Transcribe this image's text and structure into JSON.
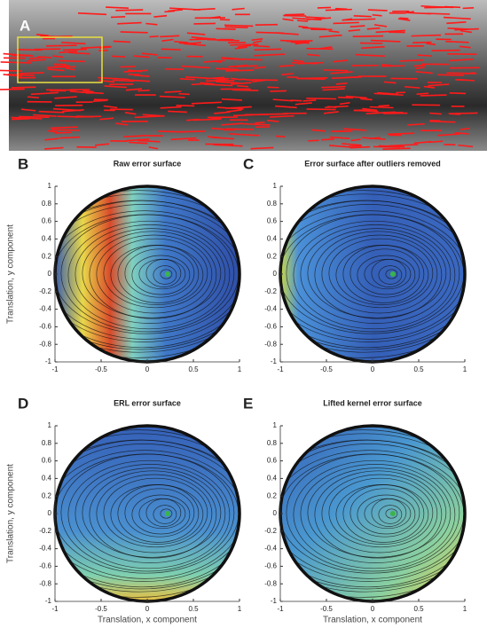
{
  "figure": {
    "photo_label": "A",
    "panels": [
      {
        "letter": "B",
        "title": "Raw error surface",
        "ylabel": "Translation, y component",
        "xlim": [
          -1,
          1
        ],
        "ylim": [
          -1,
          1
        ],
        "xticks": [
          -1,
          -0.5,
          0,
          0.5,
          1
        ],
        "yticks": [
          1,
          0.8,
          0.6,
          0.4,
          0.2,
          0,
          -0.2,
          -0.4,
          -0.6,
          -0.8,
          -1
        ]
      },
      {
        "letter": "C",
        "title": "Error surface after outliers removed",
        "xlim": [
          -1,
          1
        ],
        "ylim": [
          -1,
          1
        ],
        "xticks": [
          -1,
          -0.5,
          0,
          0.5,
          1
        ],
        "yticks": [
          1,
          0.8,
          0.6,
          0.4,
          0.2,
          0,
          -0.2,
          -0.4,
          -0.6,
          -0.8,
          -1
        ]
      },
      {
        "letter": "D",
        "title": "ERL error surface",
        "ylabel": "Translation, y component",
        "xlabel": "Translation, x component",
        "xlim": [
          -1,
          1
        ],
        "ylim": [
          -1,
          1
        ],
        "xticks": [
          -1,
          -0.5,
          0,
          0.5,
          1
        ],
        "yticks": [
          1,
          0.8,
          0.6,
          0.4,
          0.2,
          0,
          -0.2,
          -0.4,
          -0.6,
          -0.8,
          -1
        ]
      },
      {
        "letter": "E",
        "title": "Lifted kernel error surface",
        "xlabel": "Translation, x component",
        "xlim": [
          -1,
          1
        ],
        "ylim": [
          -1,
          1
        ],
        "xticks": [
          -1,
          -0.5,
          0,
          0.5,
          1
        ],
        "yticks": [
          1,
          0.8,
          0.6,
          0.4,
          0.2,
          0,
          -0.2,
          -0.4,
          -0.6,
          -0.8,
          -1
        ]
      }
    ]
  }
}
